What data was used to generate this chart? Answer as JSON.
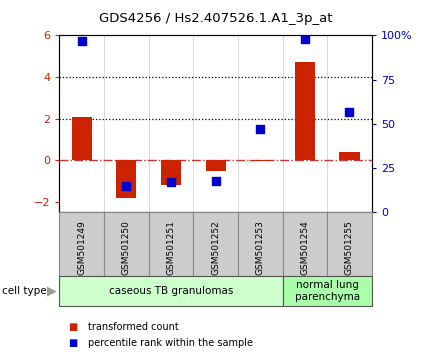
{
  "title": "GDS4256 / Hs2.407526.1.A1_3p_at",
  "samples": [
    "GSM501249",
    "GSM501250",
    "GSM501251",
    "GSM501252",
    "GSM501253",
    "GSM501254",
    "GSM501255"
  ],
  "transformed_count": [
    2.1,
    -1.8,
    -1.2,
    -0.5,
    -0.05,
    4.7,
    0.4
  ],
  "percentile_rank": [
    97,
    15,
    17,
    18,
    47,
    98,
    57
  ],
  "ylim_left": [
    -2.5,
    6.0
  ],
  "ylim_right": [
    0,
    100
  ],
  "yticks_left": [
    -2,
    0,
    2,
    4,
    6
  ],
  "yticks_right": [
    0,
    25,
    50,
    75,
    100
  ],
  "yticklabels_right": [
    "0",
    "25",
    "50",
    "75",
    "100%"
  ],
  "hline_zero_color": "#cc3333",
  "dotted_lines": [
    2.0,
    4.0
  ],
  "bar_color": "#cc2200",
  "dot_color": "#0000cc",
  "bar_width": 0.45,
  "dot_size": 40,
  "groups": [
    {
      "label": "caseous TB granulomas",
      "samples": [
        0,
        1,
        2,
        3,
        4
      ],
      "color": "#ccffcc"
    },
    {
      "label": "normal lung\nparenchyma",
      "samples": [
        5,
        6
      ],
      "color": "#aaffaa"
    }
  ],
  "cell_type_label": "cell type",
  "legend_items": [
    {
      "label": "transformed count",
      "color": "#cc2200"
    },
    {
      "label": "percentile rank within the sample",
      "color": "#0000cc"
    }
  ],
  "tick_label_color_left": "#cc2200",
  "tick_label_color_right": "#0000cc",
  "bg_color": "#ffffff",
  "spine_color": "#333333",
  "sample_box_color": "#cccccc",
  "sample_box_edge": "#888888"
}
